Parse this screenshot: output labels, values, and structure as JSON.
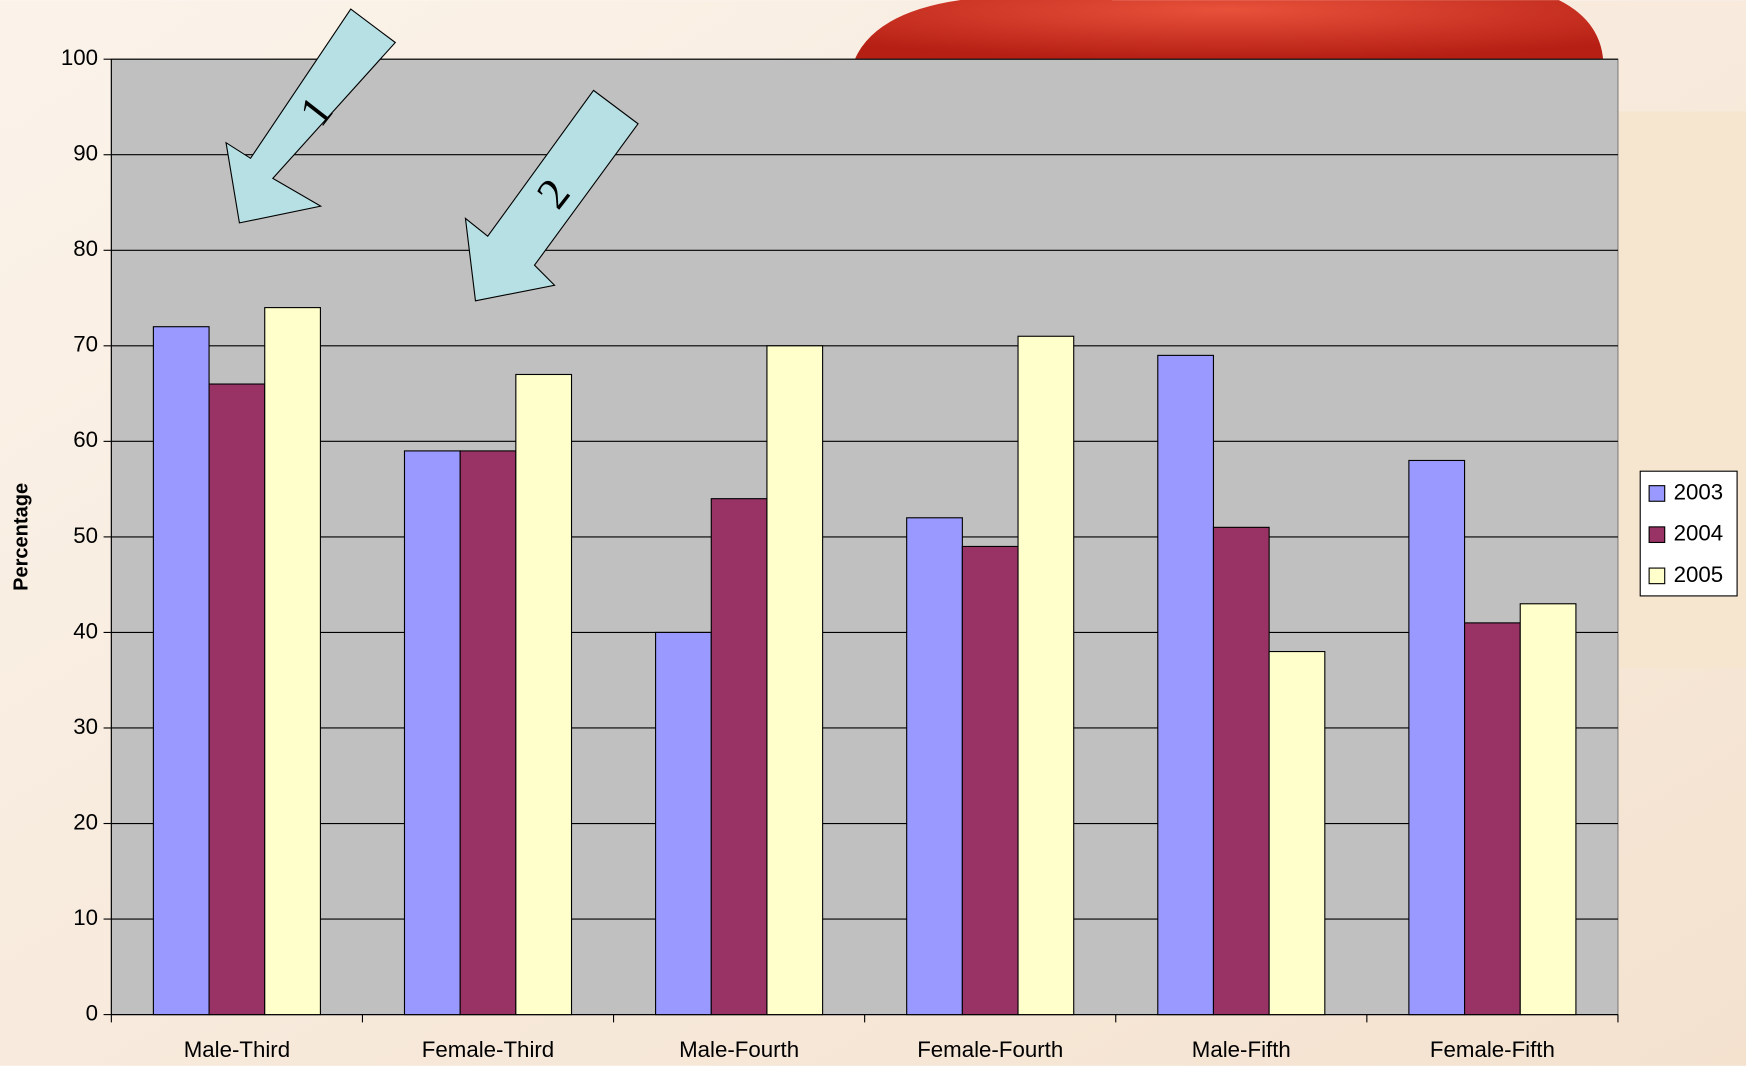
{
  "chart_data": {
    "type": "bar",
    "y_label": "Percentage",
    "categories": [
      "Male-Third",
      "Female-Third",
      "Male-Fourth",
      "Female-Fourth",
      "Male-Fifth",
      "Female-Fifth"
    ],
    "series": [
      {
        "name": "2003",
        "color": "#9999ff",
        "values": [
          72,
          59,
          40,
          52,
          69,
          58
        ]
      },
      {
        "name": "2004",
        "color": "#993366",
        "values": [
          66,
          59,
          54,
          49,
          51,
          41
        ]
      },
      {
        "name": "2005",
        "color": "#ffffcc",
        "values": [
          74,
          67,
          70,
          71,
          38,
          43
        ]
      }
    ],
    "ylim": [
      0,
      100
    ],
    "yticks": [
      0,
      10,
      20,
      30,
      40,
      50,
      60,
      70,
      80,
      90,
      100
    ],
    "grid": true,
    "legend": "right",
    "annotations": [
      "1",
      "2"
    ]
  }
}
